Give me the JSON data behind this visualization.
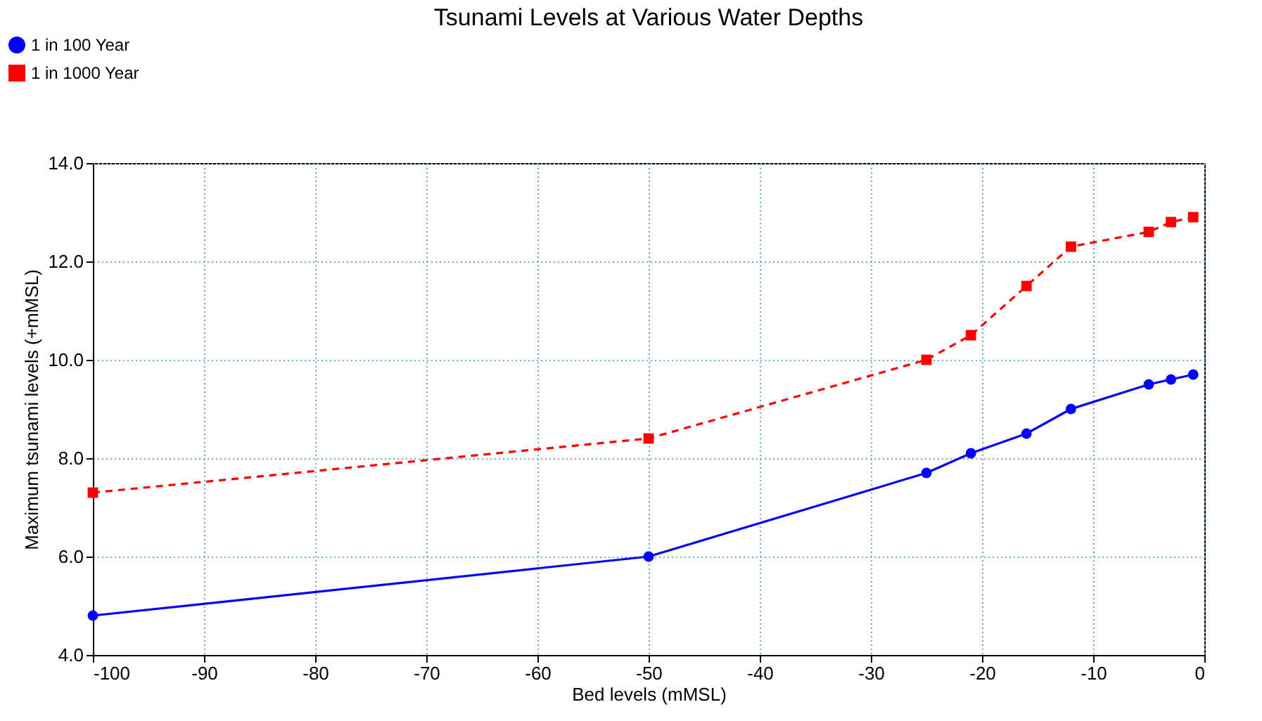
{
  "chart_data": {
    "type": "line",
    "title": "Tsunami Levels at Various Water Depths",
    "xlabel": "Bed levels (mMSL)",
    "ylabel": "Maximum tsunami levels (+mMSL)",
    "x": [
      -100,
      -50,
      -25,
      -21,
      -16,
      -12,
      -5,
      -3,
      -1
    ],
    "series": [
      {
        "name": "1 in 100 Year",
        "color": "#0000ff",
        "marker": "circle",
        "line_style": "solid",
        "values": [
          4.8,
          6.0,
          7.7,
          8.1,
          8.5,
          9.0,
          9.5,
          9.6,
          9.7
        ]
      },
      {
        "name": "1 in 1000 Year",
        "color": "#ff0000",
        "marker": "square",
        "line_style": "dashed",
        "values": [
          7.3,
          8.4,
          10.0,
          10.5,
          11.5,
          12.3,
          12.6,
          12.8,
          12.9
        ]
      }
    ],
    "xlim": [
      -100,
      0
    ],
    "xticks": [
      -100,
      -90,
      -80,
      -70,
      -60,
      -50,
      -40,
      -30,
      -20,
      -10,
      0
    ],
    "ylim": [
      4,
      14
    ],
    "yticks": [
      {
        "value": 4,
        "label": "4.0"
      },
      {
        "value": 6,
        "label": "6.0"
      },
      {
        "value": 8,
        "label": "8.0"
      },
      {
        "value": 10,
        "label": "10.0"
      },
      {
        "value": 12,
        "label": "12.0"
      },
      {
        "value": 14,
        "label": "14.0"
      }
    ],
    "grid": true,
    "legend": "top left"
  }
}
